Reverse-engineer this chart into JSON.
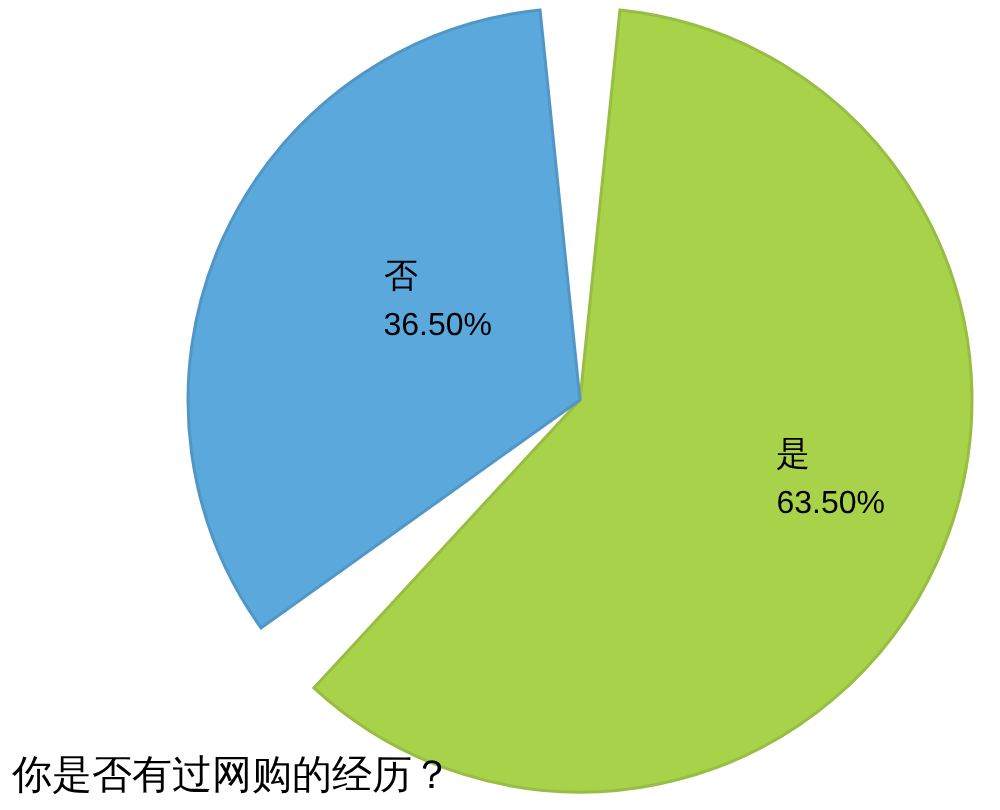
{
  "chart_data": {
    "type": "pie",
    "title": "你是否有过网购的经历？",
    "categories": [
      "是",
      "否"
    ],
    "values": [
      63.5,
      36.5
    ],
    "value_labels": [
      "63.50%",
      "36.50%"
    ],
    "colors": [
      "#a8d24a",
      "#5aa8dc"
    ],
    "legend": false
  }
}
